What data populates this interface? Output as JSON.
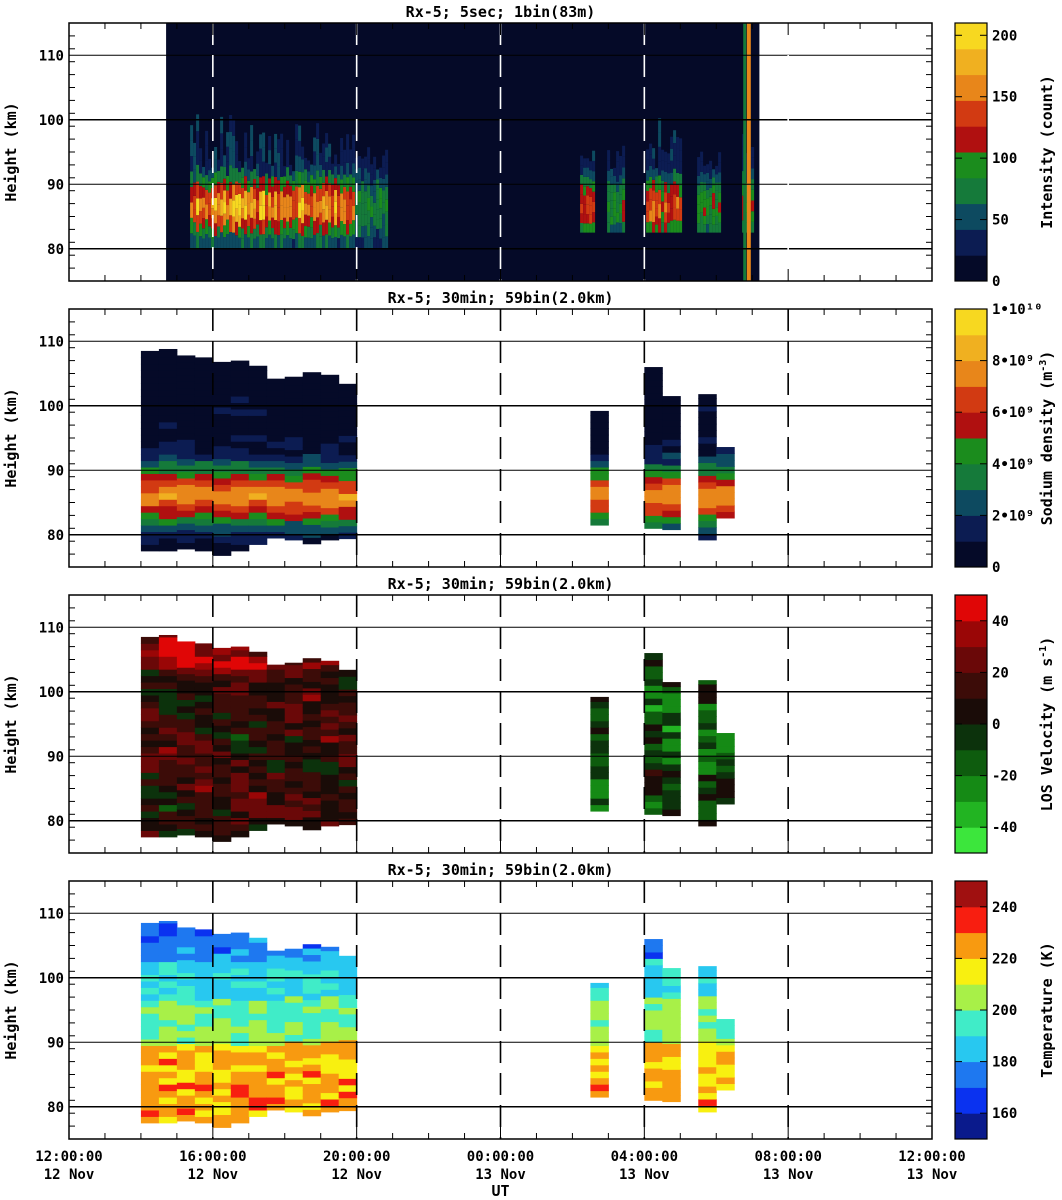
{
  "chart_data": {
    "type": "heatmap",
    "x_label": "UT",
    "x_ticks": [
      {
        "time": "12:00:00",
        "date": "12 Nov"
      },
      {
        "time": "16:00:00",
        "date": "12 Nov"
      },
      {
        "time": "20:00:00",
        "date": "12 Nov"
      },
      {
        "time": "00:00:00",
        "date": "13 Nov"
      },
      {
        "time": "04:00:00",
        "date": "13 Nov"
      },
      {
        "time": "08:00:00",
        "date": "13 Nov"
      },
      {
        "time": "12:00:00",
        "date": "13 Nov"
      }
    ],
    "x_range_hours": [
      0,
      24
    ],
    "panels": [
      {
        "title": "Rx-5;  5sec; 1bin(83m)",
        "ylabel": "Height (km)",
        "ylim": [
          75,
          115
        ],
        "yticks": [
          80,
          90,
          100,
          110
        ],
        "colorbar_label": "Intensity (count)",
        "colorbar_range": [
          0,
          210
        ],
        "colorbar_ticks": [
          "0",
          "50",
          "100",
          "150",
          "200"
        ],
        "colorbar_tick_values": [
          0,
          50,
          100,
          150,
          200
        ],
        "colors": [
          "#050a28",
          "#0c1c52",
          "#0d4a60",
          "#157a3a",
          "#1b8c1d",
          "#b01010",
          "#d23a12",
          "#e8861a",
          "#f0b020",
          "#f7d820"
        ],
        "data_coverage_hours": [
          2.7,
          19.2
        ],
        "layer_km": [
          80,
          92
        ]
      },
      {
        "title": "Rx-5; 30min; 59bin(2.0km)",
        "ylabel": "Height (km)",
        "ylim": [
          75,
          115
        ],
        "yticks": [
          80,
          90,
          100,
          110
        ],
        "colorbar_label": "Sodium density (m^-3)",
        "colorbar_range": [
          0,
          10
        ],
        "colorbar_ticks": [
          "0",
          "2•10⁹",
          "4•10⁹",
          "6•10⁹",
          "8•10⁹",
          "1•10¹⁰"
        ],
        "colorbar_tick_values": [
          0,
          2,
          4,
          6,
          8,
          10
        ],
        "colors": [
          "#050a28",
          "#0c1c52",
          "#0d4a60",
          "#157a3a",
          "#1b8c1d",
          "#b01010",
          "#d23a12",
          "#e8861a",
          "#f0b020",
          "#f7d820"
        ]
      },
      {
        "title": "Rx-5; 30min; 59bin(2.0km)",
        "ylabel": "Height (km)",
        "ylim": [
          75,
          115
        ],
        "yticks": [
          80,
          90,
          100,
          110
        ],
        "colorbar_label": "LOS Velocity (m s^-1)",
        "colorbar_range": [
          -50,
          50
        ],
        "colorbar_ticks": [
          "-40",
          "-20",
          "0",
          "20",
          "40"
        ],
        "colorbar_tick_values": [
          -40,
          -20,
          0,
          20,
          40
        ],
        "colors": [
          "#3ce63c",
          "#22b422",
          "#158a15",
          "#0e5c0e",
          "#0c320c",
          "#1a0c08",
          "#3c0c08",
          "#6a0808",
          "#9a0606",
          "#e00606"
        ]
      },
      {
        "title": "Rx-5; 30min; 59bin(2.0km)",
        "ylabel": "Height (km)",
        "ylim": [
          75,
          115
        ],
        "yticks": [
          80,
          90,
          100,
          110
        ],
        "colorbar_label": "Temperature (K)",
        "colorbar_range": [
          150,
          250
        ],
        "colorbar_ticks": [
          "160",
          "180",
          "200",
          "220",
          "240"
        ],
        "colorbar_tick_values": [
          160,
          180,
          200,
          220,
          240
        ],
        "colors": [
          "#0a1a8c",
          "#0a32f0",
          "#1e78f0",
          "#28c8f0",
          "#40ecc8",
          "#a8f048",
          "#f8f010",
          "#f89a10",
          "#f81e10",
          "#a01010"
        ]
      }
    ],
    "profiles_30min": [
      {
        "t": 2.25,
        "bot": 77.5,
        "top": 108.5
      },
      {
        "t": 2.75,
        "bot": 77.5,
        "top": 108.8
      },
      {
        "t": 3.25,
        "bot": 77.8,
        "top": 107.8
      },
      {
        "t": 3.75,
        "bot": 77.5,
        "top": 107.5
      },
      {
        "t": 4.25,
        "bot": 76.8,
        "top": 106.8
      },
      {
        "t": 4.75,
        "bot": 77.5,
        "top": 107.0
      },
      {
        "t": 5.25,
        "bot": 78.5,
        "top": 106.2
      },
      {
        "t": 5.75,
        "bot": 79.5,
        "top": 104.2
      },
      {
        "t": 6.25,
        "bot": 79.2,
        "top": 104.5
      },
      {
        "t": 6.75,
        "bot": 78.6,
        "top": 105.2
      },
      {
        "t": 7.25,
        "bot": 79.2,
        "top": 104.8
      },
      {
        "t": 7.75,
        "bot": 79.4,
        "top": 103.4
      },
      {
        "t": 14.75,
        "bot": 81.5,
        "top": 99.2
      },
      {
        "t": 16.25,
        "bot": 81.0,
        "top": 106.0
      },
      {
        "t": 16.75,
        "bot": 80.8,
        "top": 101.5
      },
      {
        "t": 17.75,
        "bot": 79.2,
        "top": 101.8
      },
      {
        "t": 18.25,
        "bot": 82.6,
        "top": 93.6
      }
    ]
  }
}
